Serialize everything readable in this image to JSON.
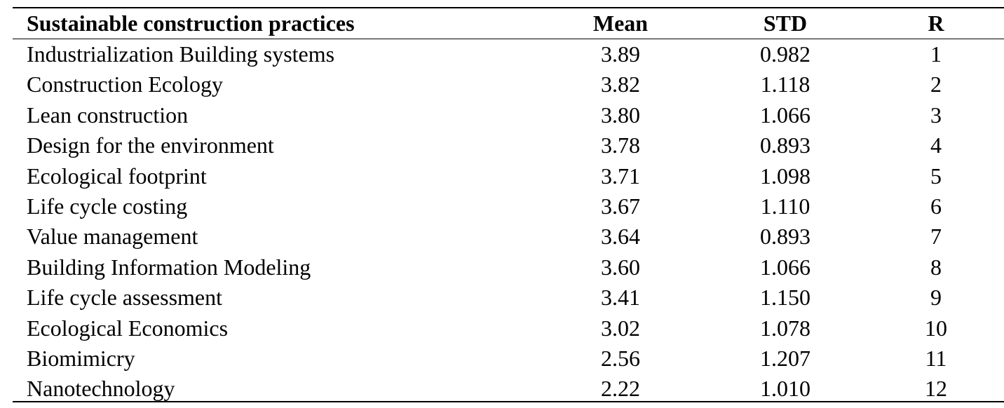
{
  "table": {
    "header": [
      "Sustainable construction practices",
      "Mean",
      "STD",
      "R"
    ],
    "rows": [
      [
        "Industrialization Building systems",
        "3.89",
        "0.982",
        "1"
      ],
      [
        "Construction Ecology",
        "3.82",
        "1.118",
        "2"
      ],
      [
        "Lean construction",
        "3.80",
        "1.066",
        "3"
      ],
      [
        "Design for the environment",
        "3.78",
        "0.893",
        "4"
      ],
      [
        "Ecological footprint",
        "3.71",
        "1.098",
        "5"
      ],
      [
        "Life cycle costing",
        "3.67",
        "1.110",
        "6"
      ],
      [
        "Value management",
        "3.64",
        "0.893",
        "7"
      ],
      [
        "Building Information Modeling",
        "3.60",
        "1.066",
        "8"
      ],
      [
        "Life cycle assessment",
        "3.41",
        "1.150",
        "9"
      ],
      [
        "Ecological Economics",
        "3.02",
        "1.078",
        "10"
      ],
      [
        "Biomimicry",
        "2.56",
        "1.207",
        "11"
      ],
      [
        "Nanotechnology",
        "2.22",
        "1.010",
        "12"
      ]
    ]
  }
}
